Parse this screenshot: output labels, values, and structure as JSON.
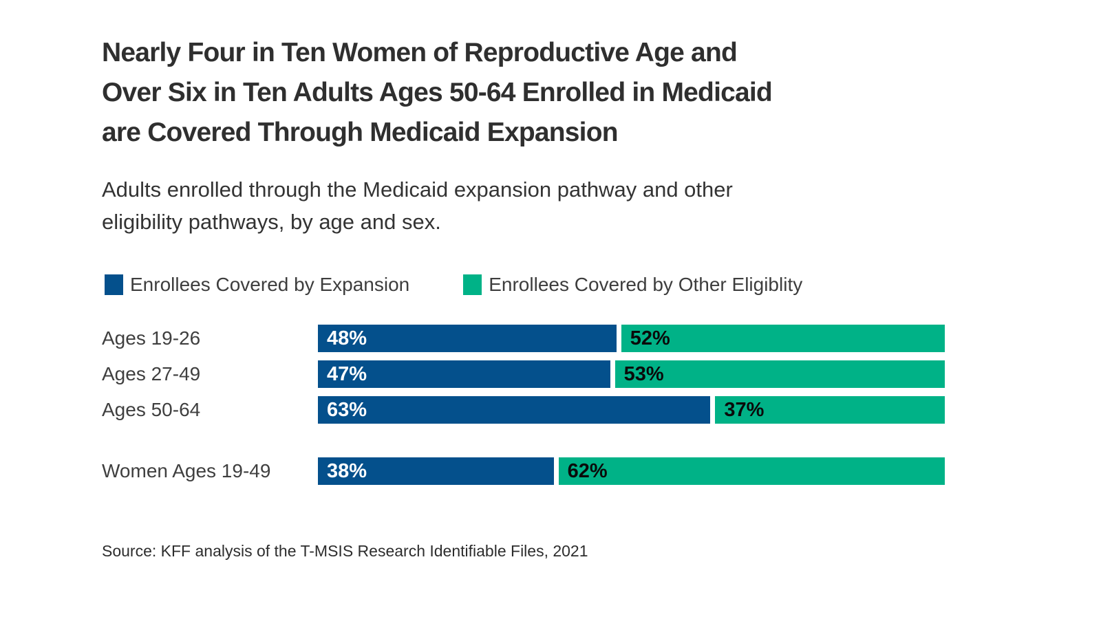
{
  "header": {
    "title_lines": [
      "Nearly Four in Ten Women of Reproductive Age and",
      "Over Six in Ten Adults Ages 50-64 Enrolled in Medicaid",
      "are Covered Through Medicaid Expansion"
    ],
    "subtitle_lines": [
      "Adults enrolled through the Medicaid expansion pathway and other",
      "eligibility pathways, by age and sex."
    ]
  },
  "legend": {
    "items": [
      {
        "label": "Enrollees Covered by Expansion",
        "color": "#04508C"
      },
      {
        "label": "Enrollees Covered by Other Eligiblity",
        "color": "#00B287"
      }
    ]
  },
  "rows": [
    {
      "label": "Ages 19-26",
      "expansion_text": "48%",
      "other_text": "52%"
    },
    {
      "label": "Ages 27-49",
      "expansion_text": "47%",
      "other_text": "53%"
    },
    {
      "label": "Ages 50-64",
      "expansion_text": "63%",
      "other_text": "37%"
    },
    {
      "label": "Women Ages 19-49",
      "expansion_text": "38%",
      "other_text": "62%"
    }
  ],
  "chart_data": {
    "type": "bar",
    "orientation": "horizontal",
    "stacked": true,
    "categories": [
      "Ages 19-26",
      "Ages 27-49",
      "Ages 50-64",
      "Women Ages 19-49"
    ],
    "series": [
      {
        "name": "Enrollees Covered by Expansion",
        "values": [
          48,
          47,
          63,
          38
        ],
        "color": "#04508C"
      },
      {
        "name": "Enrollees Covered by Other Eligiblity",
        "values": [
          52,
          53,
          37,
          62
        ],
        "color": "#00B287"
      }
    ],
    "value_unit": "%",
    "xlim": [
      0,
      100
    ],
    "title": "Nearly Four in Ten Women of Reproductive Age and Over Six in Ten Adults Ages 50-64 Enrolled in Medicaid are Covered Through Medicaid Expansion",
    "subtitle": "Adults enrolled through the Medicaid expansion pathway and other eligibility pathways, by age and sex.",
    "legend_position": "top",
    "grid": false,
    "data_labels": "inside-start"
  },
  "footer": {
    "source": "Source: KFF analysis of the T-MSIS Research Identifiable Files, 2021"
  }
}
